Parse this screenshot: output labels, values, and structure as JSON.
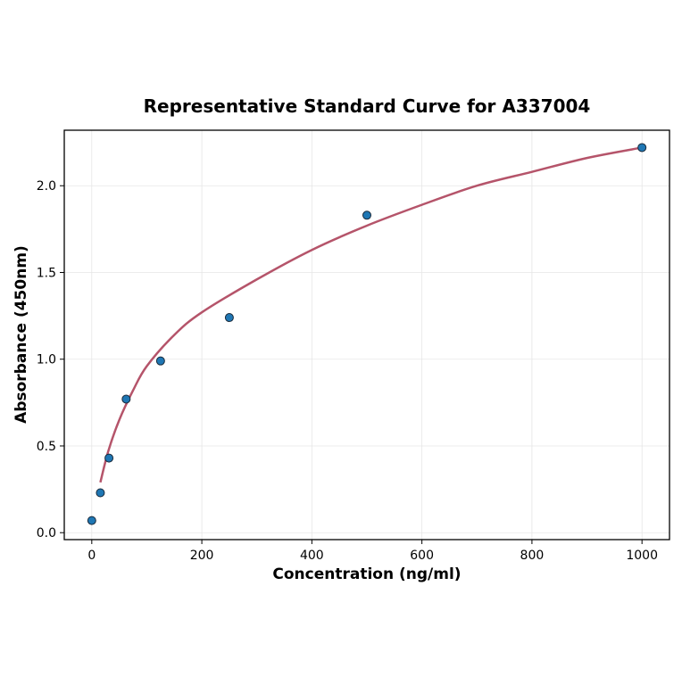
{
  "chart_data": {
    "type": "scatter",
    "title": "Representative Standard Curve for A337004",
    "xlabel": "Concentration (ng/ml)",
    "ylabel": "Absorbance (450nm)",
    "xlim": [
      -50,
      1050
    ],
    "ylim": [
      -0.04,
      2.32
    ],
    "xticks": [
      0,
      200,
      400,
      600,
      800,
      1000
    ],
    "yticks": [
      0.0,
      0.5,
      1.0,
      1.5,
      2.0
    ],
    "xtick_labels": [
      "0",
      "200",
      "400",
      "600",
      "800",
      "1000"
    ],
    "ytick_labels": [
      "0.0",
      "0.5",
      "1.0",
      "1.5",
      "2.0"
    ],
    "grid": true,
    "points": {
      "x": [
        0,
        15.6,
        31.25,
        62.5,
        125,
        250,
        500,
        1000
      ],
      "y": [
        0.07,
        0.23,
        0.43,
        0.77,
        0.99,
        1.24,
        1.83,
        2.22
      ],
      "color": "#1f77b4"
    },
    "fit_curve": {
      "x": [
        15.6,
        30,
        50,
        75,
        100,
        150,
        200,
        300,
        400,
        500,
        600,
        700,
        800,
        900,
        1000
      ],
      "y": [
        0.29,
        0.47,
        0.65,
        0.82,
        0.96,
        1.14,
        1.27,
        1.46,
        1.63,
        1.77,
        1.89,
        2.0,
        2.08,
        2.16,
        2.22
      ],
      "color": "#b5546a"
    }
  }
}
